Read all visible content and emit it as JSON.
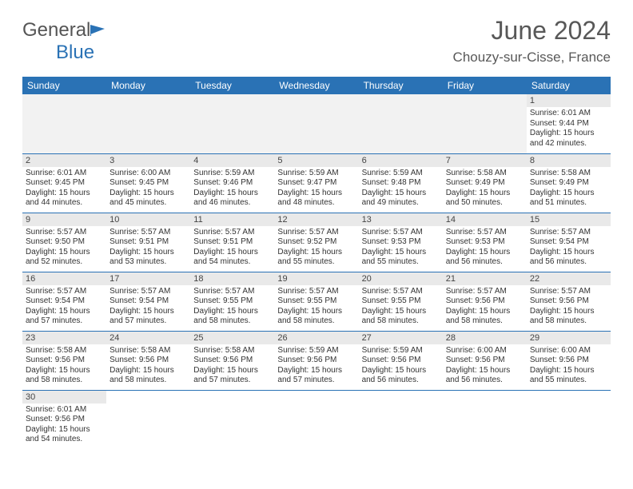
{
  "header": {
    "logo_general": "General",
    "logo_blue": "Blue",
    "title": "June 2024",
    "subtitle": "Chouzy-sur-Cisse, France"
  },
  "colors": {
    "header_bg": "#2a72b5",
    "header_text": "#ffffff",
    "daynum_bg": "#e9e9e9",
    "border": "#2a72b5",
    "text": "#333333",
    "title_text": "#585858"
  },
  "weekdays": [
    "Sunday",
    "Monday",
    "Tuesday",
    "Wednesday",
    "Thursday",
    "Friday",
    "Saturday"
  ],
  "weeks": [
    [
      null,
      null,
      null,
      null,
      null,
      null,
      {
        "n": "1",
        "sunrise": "Sunrise: 6:01 AM",
        "sunset": "Sunset: 9:44 PM",
        "daylight": "Daylight: 15 hours and 42 minutes."
      }
    ],
    [
      {
        "n": "2",
        "sunrise": "Sunrise: 6:01 AM",
        "sunset": "Sunset: 9:45 PM",
        "daylight": "Daylight: 15 hours and 44 minutes."
      },
      {
        "n": "3",
        "sunrise": "Sunrise: 6:00 AM",
        "sunset": "Sunset: 9:45 PM",
        "daylight": "Daylight: 15 hours and 45 minutes."
      },
      {
        "n": "4",
        "sunrise": "Sunrise: 5:59 AM",
        "sunset": "Sunset: 9:46 PM",
        "daylight": "Daylight: 15 hours and 46 minutes."
      },
      {
        "n": "5",
        "sunrise": "Sunrise: 5:59 AM",
        "sunset": "Sunset: 9:47 PM",
        "daylight": "Daylight: 15 hours and 48 minutes."
      },
      {
        "n": "6",
        "sunrise": "Sunrise: 5:59 AM",
        "sunset": "Sunset: 9:48 PM",
        "daylight": "Daylight: 15 hours and 49 minutes."
      },
      {
        "n": "7",
        "sunrise": "Sunrise: 5:58 AM",
        "sunset": "Sunset: 9:49 PM",
        "daylight": "Daylight: 15 hours and 50 minutes."
      },
      {
        "n": "8",
        "sunrise": "Sunrise: 5:58 AM",
        "sunset": "Sunset: 9:49 PM",
        "daylight": "Daylight: 15 hours and 51 minutes."
      }
    ],
    [
      {
        "n": "9",
        "sunrise": "Sunrise: 5:57 AM",
        "sunset": "Sunset: 9:50 PM",
        "daylight": "Daylight: 15 hours and 52 minutes."
      },
      {
        "n": "10",
        "sunrise": "Sunrise: 5:57 AM",
        "sunset": "Sunset: 9:51 PM",
        "daylight": "Daylight: 15 hours and 53 minutes."
      },
      {
        "n": "11",
        "sunrise": "Sunrise: 5:57 AM",
        "sunset": "Sunset: 9:51 PM",
        "daylight": "Daylight: 15 hours and 54 minutes."
      },
      {
        "n": "12",
        "sunrise": "Sunrise: 5:57 AM",
        "sunset": "Sunset: 9:52 PM",
        "daylight": "Daylight: 15 hours and 55 minutes."
      },
      {
        "n": "13",
        "sunrise": "Sunrise: 5:57 AM",
        "sunset": "Sunset: 9:53 PM",
        "daylight": "Daylight: 15 hours and 55 minutes."
      },
      {
        "n": "14",
        "sunrise": "Sunrise: 5:57 AM",
        "sunset": "Sunset: 9:53 PM",
        "daylight": "Daylight: 15 hours and 56 minutes."
      },
      {
        "n": "15",
        "sunrise": "Sunrise: 5:57 AM",
        "sunset": "Sunset: 9:54 PM",
        "daylight": "Daylight: 15 hours and 56 minutes."
      }
    ],
    [
      {
        "n": "16",
        "sunrise": "Sunrise: 5:57 AM",
        "sunset": "Sunset: 9:54 PM",
        "daylight": "Daylight: 15 hours and 57 minutes."
      },
      {
        "n": "17",
        "sunrise": "Sunrise: 5:57 AM",
        "sunset": "Sunset: 9:54 PM",
        "daylight": "Daylight: 15 hours and 57 minutes."
      },
      {
        "n": "18",
        "sunrise": "Sunrise: 5:57 AM",
        "sunset": "Sunset: 9:55 PM",
        "daylight": "Daylight: 15 hours and 58 minutes."
      },
      {
        "n": "19",
        "sunrise": "Sunrise: 5:57 AM",
        "sunset": "Sunset: 9:55 PM",
        "daylight": "Daylight: 15 hours and 58 minutes."
      },
      {
        "n": "20",
        "sunrise": "Sunrise: 5:57 AM",
        "sunset": "Sunset: 9:55 PM",
        "daylight": "Daylight: 15 hours and 58 minutes."
      },
      {
        "n": "21",
        "sunrise": "Sunrise: 5:57 AM",
        "sunset": "Sunset: 9:56 PM",
        "daylight": "Daylight: 15 hours and 58 minutes."
      },
      {
        "n": "22",
        "sunrise": "Sunrise: 5:57 AM",
        "sunset": "Sunset: 9:56 PM",
        "daylight": "Daylight: 15 hours and 58 minutes."
      }
    ],
    [
      {
        "n": "23",
        "sunrise": "Sunrise: 5:58 AM",
        "sunset": "Sunset: 9:56 PM",
        "daylight": "Daylight: 15 hours and 58 minutes."
      },
      {
        "n": "24",
        "sunrise": "Sunrise: 5:58 AM",
        "sunset": "Sunset: 9:56 PM",
        "daylight": "Daylight: 15 hours and 58 minutes."
      },
      {
        "n": "25",
        "sunrise": "Sunrise: 5:58 AM",
        "sunset": "Sunset: 9:56 PM",
        "daylight": "Daylight: 15 hours and 57 minutes."
      },
      {
        "n": "26",
        "sunrise": "Sunrise: 5:59 AM",
        "sunset": "Sunset: 9:56 PM",
        "daylight": "Daylight: 15 hours and 57 minutes."
      },
      {
        "n": "27",
        "sunrise": "Sunrise: 5:59 AM",
        "sunset": "Sunset: 9:56 PM",
        "daylight": "Daylight: 15 hours and 56 minutes."
      },
      {
        "n": "28",
        "sunrise": "Sunrise: 6:00 AM",
        "sunset": "Sunset: 9:56 PM",
        "daylight": "Daylight: 15 hours and 56 minutes."
      },
      {
        "n": "29",
        "sunrise": "Sunrise: 6:00 AM",
        "sunset": "Sunset: 9:56 PM",
        "daylight": "Daylight: 15 hours and 55 minutes."
      }
    ],
    [
      {
        "n": "30",
        "sunrise": "Sunrise: 6:01 AM",
        "sunset": "Sunset: 9:56 PM",
        "daylight": "Daylight: 15 hours and 54 minutes."
      },
      null,
      null,
      null,
      null,
      null,
      null
    ]
  ]
}
